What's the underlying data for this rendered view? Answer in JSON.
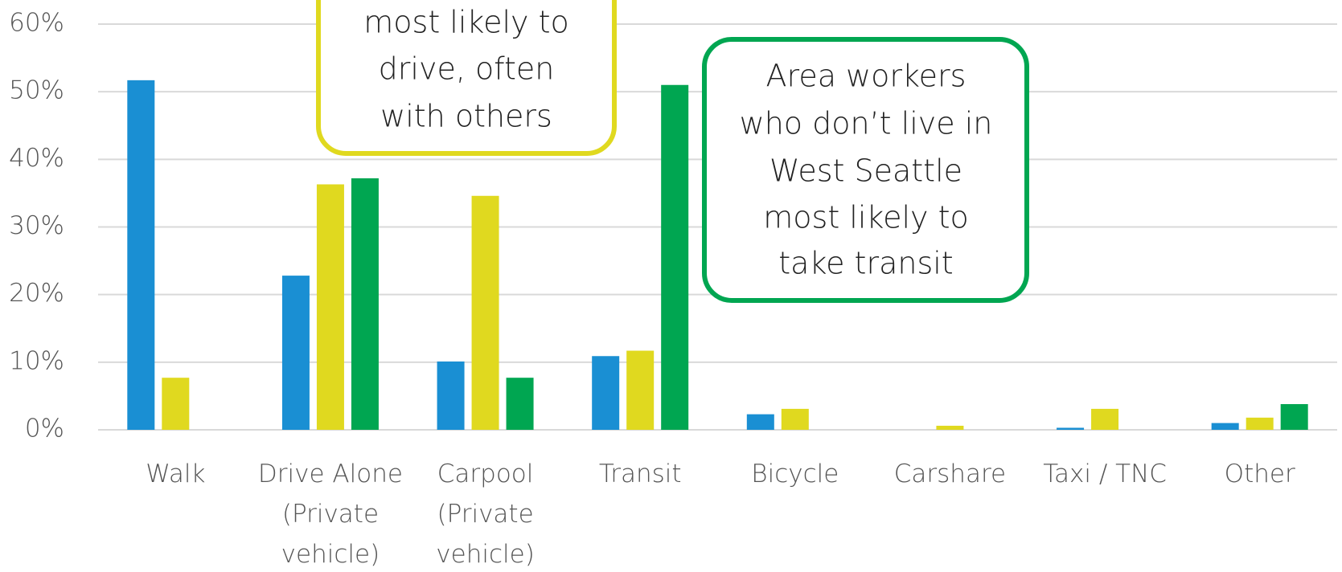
{
  "chart_data": {
    "type": "bar",
    "categories": [
      "Walk",
      "Drive Alone (Private vehicle)",
      "Carpool (Private vehicle)",
      "Transit",
      "Bicycle",
      "Carshare",
      "Taxi / TNC",
      "Other"
    ],
    "series": [
      {
        "color": "#1a8fd3",
        "values": [
          51.7,
          22.8,
          10.1,
          10.9,
          2.3,
          0,
          0.3,
          1.0
        ]
      },
      {
        "color": "#e0d91f",
        "values": [
          7.7,
          36.3,
          34.6,
          11.7,
          3.1,
          0.6,
          3.1,
          1.8
        ]
      },
      {
        "color": "#00a651",
        "values": [
          0,
          37.2,
          7.7,
          51.0,
          0,
          0,
          0,
          3.8
        ]
      }
    ],
    "ylim": [
      0,
      60
    ],
    "yticks": [
      {
        "value": 0,
        "label": "0%"
      },
      {
        "value": 10,
        "label": "10%"
      },
      {
        "value": 20,
        "label": "20%"
      },
      {
        "value": 30,
        "label": "30%"
      },
      {
        "value": 40,
        "label": "40%"
      },
      {
        "value": 50,
        "label": "50%"
      },
      {
        "value": 60,
        "label": "60%"
      }
    ],
    "grid": true,
    "annotations": [
      {
        "color": "#e0d91f",
        "lines": [
          "most likely to",
          "drive, often",
          "with others"
        ]
      },
      {
        "color": "#00a651",
        "lines": [
          "Area workers",
          "who don’t live in",
          "West Seattle",
          "most likely to",
          "take transit"
        ]
      }
    ]
  }
}
